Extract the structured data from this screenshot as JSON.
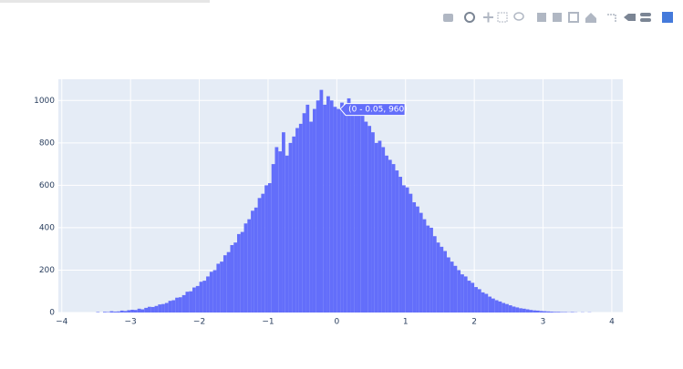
{
  "chart_data": {
    "type": "histogram",
    "bins": [
      -3.5,
      -3.45,
      -3.4,
      -3.35,
      -3.3,
      -3.25,
      -3.2,
      -3.15,
      -3.1,
      -3.05,
      -3,
      -2.95,
      -2.9,
      -2.85,
      -2.8,
      -2.75,
      -2.7,
      -2.65,
      -2.6,
      -2.55,
      -2.5,
      -2.45,
      -2.4,
      -2.35,
      -2.3,
      -2.25,
      -2.2,
      -2.15,
      -2.1,
      -2.05,
      -2,
      -1.95,
      -1.9,
      -1.85,
      -1.8,
      -1.75,
      -1.7,
      -1.65,
      -1.6,
      -1.55,
      -1.5,
      -1.45,
      -1.4,
      -1.35,
      -1.3,
      -1.25,
      -1.2,
      -1.15,
      -1.1,
      -1.05,
      -1,
      -0.95,
      -0.9,
      -0.85,
      -0.8,
      -0.75,
      -0.7,
      -0.65,
      -0.6,
      -0.55,
      -0.5,
      -0.45,
      -0.4,
      -0.35,
      -0.3,
      -0.25,
      -0.2,
      -0.15,
      -0.1,
      -0.05,
      0,
      0.05,
      0.1,
      0.15,
      0.2,
      0.25,
      0.3,
      0.35,
      0.4,
      0.45,
      0.5,
      0.55,
      0.6,
      0.65,
      0.7,
      0.75,
      0.8,
      0.85,
      0.9,
      0.95,
      1,
      1.05,
      1.1,
      1.15,
      1.2,
      1.25,
      1.3,
      1.35,
      1.4,
      1.45,
      1.5,
      1.55,
      1.6,
      1.65,
      1.7,
      1.75,
      1.8,
      1.85,
      1.9,
      1.95,
      2,
      2.05,
      2.1,
      2.15,
      2.2,
      2.25,
      2.3,
      2.35,
      2.4,
      2.45,
      2.5,
      2.55,
      2.6,
      2.65,
      2.7,
      2.75,
      2.8,
      2.85,
      2.9,
      2.95,
      3,
      3.05,
      3.1,
      3.15,
      3.2,
      3.25,
      3.3,
      3.35,
      3.4,
      3.45,
      3.5,
      3.55,
      3.6,
      3.65,
      3.7
    ],
    "counts": [
      2,
      0,
      3,
      2,
      6,
      4,
      5,
      9,
      7,
      11,
      13,
      12,
      18,
      15,
      22,
      27,
      26,
      31,
      38,
      40,
      45,
      55,
      58,
      70,
      72,
      82,
      98,
      100,
      118,
      125,
      145,
      150,
      170,
      192,
      200,
      230,
      240,
      270,
      285,
      318,
      330,
      370,
      380,
      420,
      440,
      480,
      495,
      540,
      560,
      600,
      610,
      700,
      780,
      760,
      850,
      740,
      800,
      830,
      870,
      890,
      940,
      980,
      900,
      960,
      1000,
      1050,
      980,
      1020,
      1000,
      970,
      960,
      990,
      950,
      1010,
      980,
      970,
      930,
      940,
      900,
      880,
      850,
      800,
      810,
      780,
      740,
      720,
      700,
      670,
      640,
      600,
      590,
      560,
      520,
      500,
      470,
      440,
      410,
      400,
      360,
      330,
      310,
      290,
      260,
      240,
      220,
      200,
      180,
      170,
      150,
      140,
      120,
      110,
      95,
      88,
      75,
      66,
      58,
      52,
      45,
      40,
      34,
      28,
      24,
      20,
      18,
      15,
      12,
      10,
      9,
      7,
      6,
      5,
      4,
      3,
      3,
      2,
      2,
      1,
      2,
      1,
      0,
      1,
      0,
      1
    ],
    "color": "#636efa",
    "xlim": [
      -4.05,
      4.16
    ],
    "xticks": [
      {
        "value": -4,
        "label": "−4"
      },
      {
        "value": -3,
        "label": "−3"
      },
      {
        "value": -2,
        "label": "−2"
      },
      {
        "value": -1,
        "label": "−1"
      },
      0,
      1,
      2,
      3,
      4
    ],
    "ylim": [
      0,
      1100
    ],
    "yticks": [
      0,
      200,
      400,
      600,
      800,
      1000
    ],
    "grid": true,
    "hover_label": "(0 - 0.05, 960)"
  }
}
